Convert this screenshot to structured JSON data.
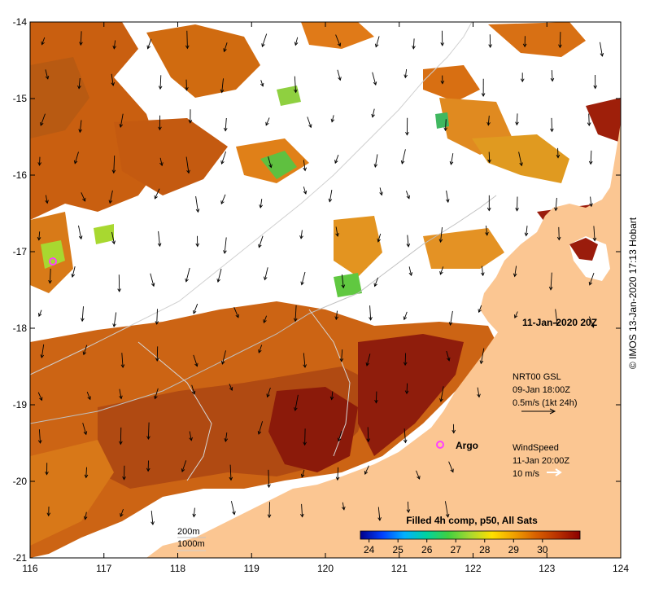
{
  "map": {
    "lon_range": [
      116,
      124
    ],
    "lat_range": [
      -21,
      -14
    ],
    "lon_ticks": [
      "116",
      "117",
      "118",
      "119",
      "120",
      "121",
      "122",
      "123",
      "124"
    ],
    "lat_ticks": [
      "-14",
      "-15",
      "-16",
      "-17",
      "-18",
      "-19",
      "-20",
      "-21"
    ],
    "title": "11-Jan-2020 20Z",
    "product": "Filled 4h comp, p50, All Sats",
    "colorbar_ticks": [
      "24",
      "25",
      "26",
      "27",
      "28",
      "29",
      "30"
    ],
    "colorbar_range": [
      23.7,
      31.3
    ],
    "colorbar_colors": [
      "#00008b",
      "#0040ff",
      "#00b0ff",
      "#00d2a0",
      "#40d040",
      "#a8d830",
      "#ffe000",
      "#f0a000",
      "#d86000",
      "#b83000",
      "#8b0000"
    ],
    "current_legend": {
      "source": "NRT00 GSL",
      "time": "09-Jan 18:00Z",
      "scale": "0.5m/s (1kt 24h)"
    },
    "wind_legend": {
      "label": "WindSpeed",
      "time": "11-Jan 20:00Z",
      "scale": "10 m/s"
    },
    "argo_label": "Argo",
    "isobaths": [
      "200m",
      "1000m"
    ],
    "credit": "© IMOS 13-Jan-2020 17:13 Hobart",
    "colors": {
      "land": "#fbc692",
      "ocean_warm": "#d06810",
      "ocean_hot": "#8b1a0a",
      "ocean_cool": "#e8a020",
      "argo": "#ff40ff",
      "isobath_200": "#c0c0c0",
      "isobath_1000": "#d8d8d8"
    }
  }
}
